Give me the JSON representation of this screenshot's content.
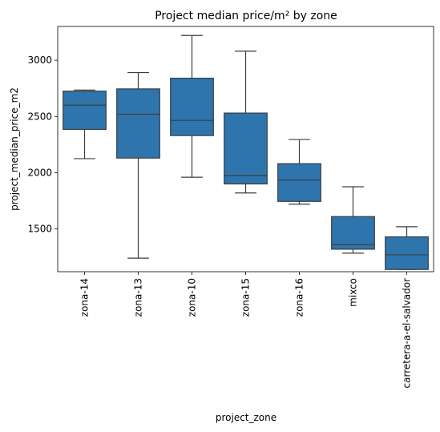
{
  "chart_data": {
    "type": "box",
    "title": "Project median price/m² by zone",
    "xlabel": "project_zone",
    "ylabel": "project_median_price_m2",
    "ylim": [
      1120,
      3300
    ],
    "yticks": [
      1500,
      2000,
      2500,
      3000
    ],
    "grid": false,
    "box_color": "#2e75ad",
    "line_color": "#3d3d3d",
    "categories": [
      "zona-14",
      "zona-13",
      "zona-10",
      "zona-15",
      "zona-16",
      "mixco",
      "carretera-a-el-salvador"
    ],
    "boxes": [
      {
        "category": "zona-14",
        "min": 2125,
        "q1": 2385,
        "median": 2600,
        "q3": 2725,
        "max": 2735
      },
      {
        "category": "zona-13",
        "min": 1240,
        "q1": 2130,
        "median": 2520,
        "q3": 2745,
        "max": 2890
      },
      {
        "category": "zona-10",
        "min": 1960,
        "q1": 2330,
        "median": 2465,
        "q3": 2840,
        "max": 3220
      },
      {
        "category": "zona-15",
        "min": 1820,
        "q1": 1900,
        "median": 1975,
        "q3": 2530,
        "max": 3080
      },
      {
        "category": "zona-16",
        "min": 1720,
        "q1": 1745,
        "median": 1935,
        "q3": 2080,
        "max": 2295
      },
      {
        "category": "mixco",
        "min": 1285,
        "q1": 1320,
        "median": 1360,
        "q3": 1610,
        "max": 1875
      },
      {
        "category": "carretera-a-el-salvador",
        "min": 1140,
        "q1": 1140,
        "median": 1270,
        "q3": 1430,
        "max": 1520
      }
    ]
  }
}
